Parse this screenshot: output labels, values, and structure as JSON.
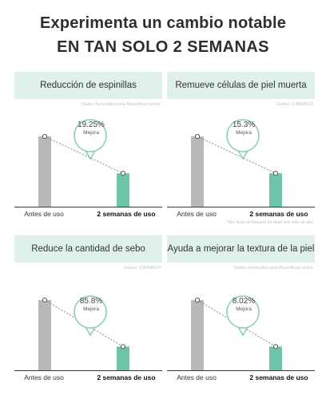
{
  "header": {
    "line1": "Experimenta un cambio notable",
    "line2": "EN TAN SOLO 2 SEMANAS"
  },
  "colors": {
    "accent_bar": "#6cc6a6",
    "before_bar": "#b9b9b9",
    "title_bg": "#dff1ea",
    "bubble_stroke": "#86cdb4"
  },
  "panels": [
    {
      "title": "Reducción de espinillas",
      "source": "Dados fornecidos pela Bioartificial online",
      "improvement": "19.25%",
      "improvement_label": "Mejora",
      "before_label": "Antes de uso",
      "after_label": "2 semanas de uso",
      "before_level": 0.8,
      "after_level": 0.38,
      "footnote": ""
    },
    {
      "title": "Remueve células de piel muerta",
      "source": "Dados: CIRINBCO",
      "improvement": "15.3%",
      "improvement_label": "Mejora",
      "before_label": "Antes de uso",
      "after_label": "2 semanas de uso",
      "before_level": 0.8,
      "after_level": 0.38,
      "footnote": "*Elo: Auxe of measure for dead skin cells on skin"
    },
    {
      "title": "Reduce la cantidad de sebo",
      "source": "Dados: CIRINBCO",
      "improvement": "85.8%",
      "improvement_label": "Mejora",
      "before_label": "Antes de uso",
      "after_label": "2 semanas de uso",
      "before_level": 0.8,
      "after_level": 0.27,
      "footnote": ""
    },
    {
      "title": "Ayuda a mejorar la textura de la piel",
      "source": "Dados fornecidos pela Bioartificial online",
      "improvement": "8.02%",
      "improvement_label": "Mejora",
      "before_label": "Antes de uso",
      "after_label": "2 semanas de uso",
      "before_level": 0.8,
      "after_level": 0.27,
      "footnote": ""
    }
  ]
}
